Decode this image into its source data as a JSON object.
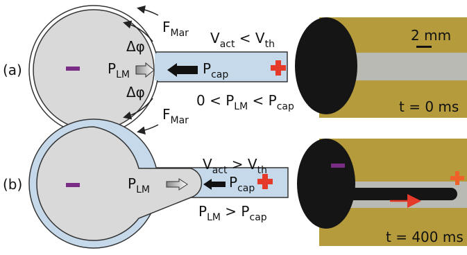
{
  "panel_a": {
    "label": "(a)",
    "force_top": [
      {
        "text": "F"
      },
      {
        "sub": "Mar"
      }
    ],
    "angle_top": "Δφ",
    "angle_bottom": "Δφ",
    "force_bottom": [
      {
        "text": "F"
      },
      {
        "sub": "Mar"
      }
    ],
    "p_lm": [
      {
        "text": "P"
      },
      {
        "sub": "LM"
      }
    ],
    "p_cap": [
      {
        "text": "P"
      },
      {
        "sub": "cap"
      }
    ],
    "voltage": [
      {
        "text": "V"
      },
      {
        "sub": "act"
      },
      {
        "text": " < V"
      },
      {
        "sub": "th"
      }
    ],
    "pressure": [
      {
        "text": "0 < P"
      },
      {
        "sub": "LM"
      },
      {
        "text": " < P"
      },
      {
        "sub": "cap"
      }
    ],
    "photo": {
      "scale": "2 mm",
      "time": "t = 0 ms"
    }
  },
  "panel_b": {
    "label": "(b)",
    "p_lm": [
      {
        "text": "P"
      },
      {
        "sub": "LM"
      }
    ],
    "p_cap": [
      {
        "text": "P"
      },
      {
        "sub": "cap"
      }
    ],
    "voltage": [
      {
        "text": "V"
      },
      {
        "sub": "act"
      },
      {
        "text": " > V"
      },
      {
        "sub": "th"
      }
    ],
    "pressure": [
      {
        "text": "P"
      },
      {
        "sub": "LM"
      },
      {
        "text": " > P"
      },
      {
        "sub": "cap"
      }
    ],
    "photo": {
      "time": "t = 400 ms"
    }
  }
}
